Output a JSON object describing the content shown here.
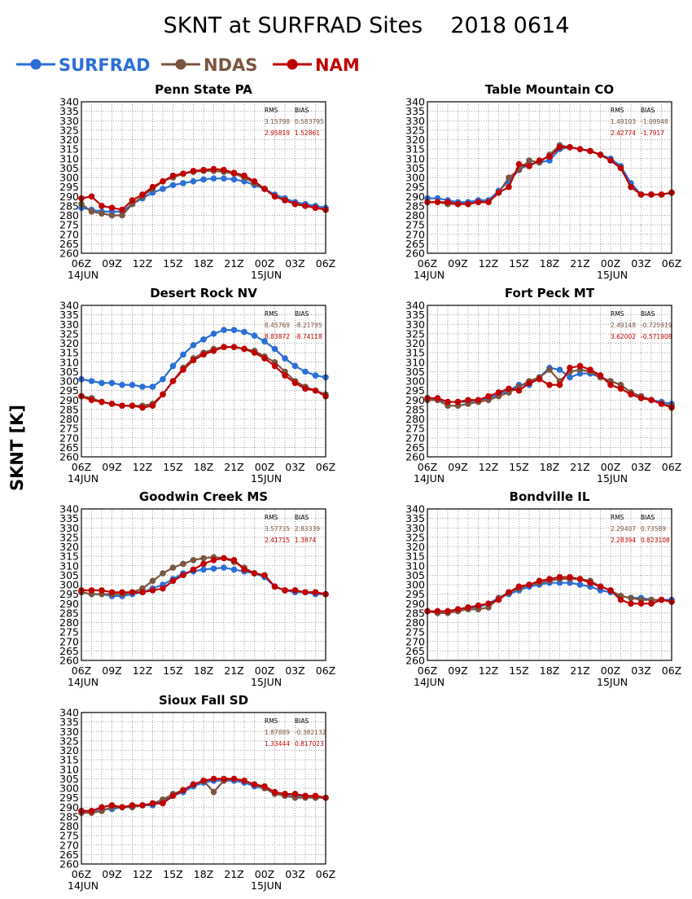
{
  "title": "SKNT at SURFRAD Sites    2018 0614",
  "ylabel": "SKNT [K]",
  "legend": [
    {
      "label": "SURFRAD",
      "color": "#2b6fd6"
    },
    {
      "label": "NDAS",
      "color": "#7a5540"
    },
    {
      "label": "NAM",
      "color": "#c00000"
    }
  ],
  "stats_headers": [
    "RMS",
    "BIAS"
  ],
  "axis": {
    "ylim": [
      260,
      340
    ],
    "yticks": [
      260,
      265,
      270,
      275,
      280,
      285,
      290,
      295,
      300,
      305,
      310,
      315,
      320,
      325,
      330,
      335,
      340
    ],
    "xlim": [
      0,
      24
    ],
    "xtick_labels": [
      "06Z",
      "09Z",
      "12Z",
      "15Z",
      "18Z",
      "21Z",
      "00Z",
      "03Z",
      "06Z"
    ],
    "date_labels": [
      "14JUN",
      "15JUN"
    ],
    "grid": true
  },
  "chart_data": [
    {
      "type": "line",
      "title": "Penn State PA",
      "x": [
        0,
        1,
        2,
        3,
        4,
        5,
        6,
        7,
        8,
        9,
        10,
        11,
        12,
        13,
        14,
        15,
        16,
        17,
        18,
        19,
        20,
        21,
        22,
        23,
        24
      ],
      "series": [
        {
          "name": "SURFRAD",
          "values": [
            284,
            283,
            282,
            282,
            282,
            286,
            289,
            292,
            294,
            296,
            297,
            298,
            299,
            299.5,
            299.5,
            299,
            298,
            296,
            294,
            291,
            289,
            287,
            286,
            285,
            284
          ]
        },
        {
          "name": "NDAS",
          "values": [
            286,
            282,
            281,
            280,
            280,
            286,
            290,
            294,
            298,
            300,
            302,
            303,
            303.5,
            303.5,
            303,
            302,
            300,
            297,
            294,
            290,
            288,
            286,
            285,
            284,
            283
          ]
        },
        {
          "name": "NAM",
          "values": [
            289,
            290,
            285,
            284,
            283,
            288,
            291,
            295,
            298,
            301,
            302,
            303.5,
            304,
            304.5,
            304,
            302.5,
            301,
            298,
            294,
            290,
            288,
            286,
            285,
            284,
            283
          ]
        }
      ],
      "stats": {
        "NDAS": {
          "rms": "3.15798",
          "bias": "0.583795"
        },
        "NAM": {
          "rms": "2.95819",
          "bias": "1.52861"
        }
      }
    },
    {
      "type": "line",
      "title": "Table Mountain CO",
      "x": [
        0,
        1,
        2,
        3,
        4,
        5,
        6,
        7,
        8,
        9,
        10,
        11,
        12,
        13,
        14,
        15,
        16,
        17,
        18,
        19,
        20,
        21,
        22,
        23,
        24
      ],
      "series": [
        {
          "name": "SURFRAD",
          "values": [
            289,
            289,
            288,
            287,
            287,
            288,
            288,
            293,
            298,
            304,
            307,
            308,
            309,
            315,
            316,
            315,
            314,
            312,
            310,
            306,
            297,
            291,
            291,
            291,
            292
          ]
        },
        {
          "name": "NDAS",
          "values": [
            287,
            287,
            286,
            286,
            286,
            287,
            287,
            292,
            300,
            304,
            309,
            308,
            312,
            317,
            316,
            315,
            314,
            312,
            309,
            305,
            295,
            291,
            291,
            291,
            292
          ]
        },
        {
          "name": "NAM",
          "values": [
            287,
            287,
            287,
            286,
            286,
            287,
            287,
            292,
            295,
            307,
            306,
            309,
            311,
            316,
            316,
            315,
            314,
            312,
            309,
            305,
            295,
            291,
            291,
            291,
            292
          ]
        }
      ],
      "stats": {
        "NDAS": {
          "rms": "1.49103",
          "bias": "-1.09948"
        },
        "NAM": {
          "rms": "2.42774",
          "bias": "-1.7917"
        }
      }
    },
    {
      "type": "line",
      "title": "Desert Rock NV",
      "x": [
        0,
        1,
        2,
        3,
        4,
        5,
        6,
        7,
        8,
        9,
        10,
        11,
        12,
        13,
        14,
        15,
        16,
        17,
        18,
        19,
        20,
        21,
        22,
        23,
        24
      ],
      "series": [
        {
          "name": "SURFRAD",
          "values": [
            301,
            300,
            299,
            299,
            298,
            298,
            297,
            297,
            301,
            308,
            314,
            319,
            322,
            325,
            327,
            327,
            326,
            324,
            321,
            317,
            312,
            308,
            305,
            303,
            302
          ]
        },
        {
          "name": "NDAS",
          "values": [
            292,
            291,
            289,
            288,
            287,
            287,
            287,
            288,
            293,
            300,
            307,
            312,
            315,
            317,
            318,
            318,
            317,
            316,
            313,
            310,
            305,
            300,
            297,
            295,
            293
          ]
        },
        {
          "name": "NAM",
          "values": [
            292,
            290,
            289,
            288,
            287,
            287,
            286,
            287,
            293,
            300,
            306,
            311,
            314,
            316,
            318,
            318,
            317,
            315,
            312,
            308,
            303,
            299,
            296,
            295,
            292
          ]
        }
      ],
      "stats": {
        "NDAS": {
          "rms": "8.45769",
          "bias": "-8.21795"
        },
        "NAM": {
          "rms": "8.83872",
          "bias": "-8.74118"
        }
      }
    },
    {
      "type": "line",
      "title": "Fort Peck MT",
      "x": [
        0,
        1,
        2,
        3,
        4,
        5,
        6,
        7,
        8,
        9,
        10,
        11,
        12,
        13,
        14,
        15,
        16,
        17,
        18,
        19,
        20,
        21,
        22,
        23,
        24
      ],
      "series": [
        {
          "name": "SURFRAD",
          "values": [
            290,
            290,
            289,
            289,
            289,
            290,
            291,
            293,
            295,
            298,
            298,
            302,
            307,
            306,
            302,
            304,
            304,
            302,
            300,
            298,
            294,
            292,
            290,
            289,
            288
          ]
        },
        {
          "name": "NDAS",
          "values": [
            290,
            290,
            287,
            287,
            288,
            289,
            290,
            292,
            294,
            297,
            300,
            302,
            306,
            300,
            305,
            306,
            305,
            302,
            300,
            298,
            294,
            292,
            290,
            288,
            287
          ]
        },
        {
          "name": "NAM",
          "values": [
            291,
            291,
            289,
            289,
            290,
            290,
            292,
            294,
            296,
            295,
            299,
            301,
            298,
            298,
            307,
            308,
            306,
            303,
            298,
            296,
            293,
            291,
            290,
            288,
            286
          ]
        }
      ],
      "stats": {
        "NDAS": {
          "rms": "2.49148",
          "bias": "-0.725919"
        },
        "NAM": {
          "rms": "3.62002",
          "bias": "-0.571908"
        }
      }
    },
    {
      "type": "line",
      "title": "Goodwin Creek MS",
      "x": [
        0,
        1,
        2,
        3,
        4,
        5,
        6,
        7,
        8,
        9,
        10,
        11,
        12,
        13,
        14,
        15,
        16,
        17,
        18,
        19,
        20,
        21,
        22,
        23,
        24
      ],
      "series": [
        {
          "name": "SURFRAD",
          "values": [
            296,
            295,
            295,
            294,
            294,
            295,
            296,
            298,
            300,
            303,
            306,
            307,
            308,
            308.5,
            309,
            308,
            307,
            306,
            304,
            299,
            297,
            296,
            296,
            295,
            295
          ]
        },
        {
          "name": "NDAS",
          "values": [
            296,
            295,
            295,
            295,
            295,
            296,
            298,
            302,
            306,
            309,
            311,
            313,
            314,
            314.5,
            314,
            312,
            309,
            306,
            305,
            299,
            297,
            297,
            296,
            296,
            295
          ]
        },
        {
          "name": "NAM",
          "values": [
            297,
            297,
            297,
            296,
            296,
            296,
            296,
            297,
            298,
            302,
            305,
            308,
            311,
            313,
            314,
            313,
            308,
            306,
            305,
            299,
            297,
            297,
            296,
            296,
            295
          ]
        }
      ],
      "stats": {
        "NDAS": {
          "rms": "3.57735",
          "bias": "2.83339"
        },
        "NAM": {
          "rms": "2.41715",
          "bias": "1.3874"
        }
      }
    },
    {
      "type": "line",
      "title": "Bondville IL",
      "x": [
        0,
        1,
        2,
        3,
        4,
        5,
        6,
        7,
        8,
        9,
        10,
        11,
        12,
        13,
        14,
        15,
        16,
        17,
        18,
        19,
        20,
        21,
        22,
        23,
        24
      ],
      "series": [
        {
          "name": "SURFRAD",
          "values": [
            286,
            286,
            286,
            287,
            288,
            288,
            290,
            293,
            295,
            297,
            299,
            300,
            301,
            301,
            301,
            300,
            299,
            297,
            296,
            294,
            293,
            293,
            292,
            292,
            292
          ]
        },
        {
          "name": "NDAS",
          "values": [
            286,
            285,
            285,
            286,
            287,
            287,
            288,
            293,
            296,
            298,
            300,
            301,
            302,
            303,
            303,
            303,
            302,
            299,
            297,
            294,
            293,
            292,
            292,
            292,
            291
          ]
        },
        {
          "name": "NAM",
          "values": [
            286,
            286,
            286,
            287,
            288,
            289,
            290,
            292,
            296,
            299,
            300,
            302,
            303,
            304,
            304,
            303,
            301,
            299,
            297,
            292,
            290,
            290,
            290,
            292,
            291
          ]
        }
      ],
      "stats": {
        "NDAS": {
          "rms": "2.29407",
          "bias": "0.73589"
        },
        "NAM": {
          "rms": "2.28394",
          "bias": "0.823108"
        }
      }
    },
    {
      "type": "line",
      "title": "Sioux Fall SD",
      "x": [
        0,
        1,
        2,
        3,
        4,
        5,
        6,
        7,
        8,
        9,
        10,
        11,
        12,
        13,
        14,
        15,
        16,
        17,
        18,
        19,
        20,
        21,
        22,
        23,
        24
      ],
      "series": [
        {
          "name": "SURFRAD",
          "values": [
            288,
            288,
            289,
            289,
            290,
            290,
            291,
            291,
            293,
            296,
            298,
            301,
            303,
            304,
            304,
            304,
            303,
            301,
            300,
            298,
            297,
            296,
            296,
            295,
            295
          ]
        },
        {
          "name": "NDAS",
          "values": [
            287,
            287,
            288,
            290,
            290,
            290,
            291,
            292,
            294,
            297,
            299,
            302,
            304,
            298,
            304,
            305,
            304,
            302,
            300,
            297,
            296,
            295,
            295,
            295,
            295
          ]
        },
        {
          "name": "NAM",
          "values": [
            288,
            288,
            290,
            291,
            290,
            291,
            291,
            292,
            292,
            296,
            299,
            302,
            304,
            305,
            305,
            305,
            304,
            302,
            301,
            298,
            297,
            297,
            296,
            296,
            295
          ]
        }
      ],
      "stats": {
        "NDAS": {
          "rms": "1.87889",
          "bias": "-0.382132"
        },
        "NAM": {
          "rms": "1.33444",
          "bias": "0.817023"
        }
      }
    }
  ]
}
